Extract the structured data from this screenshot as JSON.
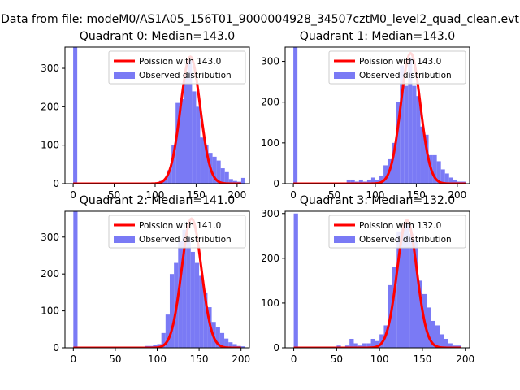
{
  "suptitle": "Data from file: modeM0/AS1A05_156T01_9000004928_34507cztM0_level2_quad_clean.evt",
  "colors": {
    "observed": "#7a7af5",
    "poisson": "#ff0000",
    "axis": "#000000"
  },
  "chart_data": [
    {
      "type": "bar",
      "title": "Quadrant 0: Median=143.0",
      "xlim": [
        -10,
        215
      ],
      "ylim": [
        0,
        355
      ],
      "xticks": [
        0,
        50,
        100,
        150,
        200
      ],
      "yticks": [
        0,
        100,
        200,
        300
      ],
      "legend_position": "upper right",
      "poisson": {
        "label": "Poission with 143.0",
        "lambda": 143.0,
        "peak": 330,
        "x_range": [
          0,
          205
        ]
      },
      "observed": {
        "label": "Observed distribution",
        "bin_width": 5,
        "bins": [
          [
            0,
            360
          ],
          [
            5,
            0
          ],
          [
            10,
            0
          ],
          [
            15,
            0
          ],
          [
            20,
            0
          ],
          [
            25,
            0
          ],
          [
            30,
            0
          ],
          [
            35,
            0
          ],
          [
            40,
            0
          ],
          [
            45,
            0
          ],
          [
            50,
            0
          ],
          [
            55,
            0
          ],
          [
            60,
            0
          ],
          [
            65,
            0
          ],
          [
            70,
            0
          ],
          [
            75,
            0
          ],
          [
            80,
            0
          ],
          [
            85,
            0
          ],
          [
            90,
            0
          ],
          [
            95,
            1
          ],
          [
            100,
            3
          ],
          [
            105,
            7
          ],
          [
            110,
            10
          ],
          [
            115,
            35
          ],
          [
            120,
            100
          ],
          [
            125,
            210
          ],
          [
            130,
            220
          ],
          [
            135,
            285
          ],
          [
            140,
            320
          ],
          [
            145,
            240
          ],
          [
            150,
            200
          ],
          [
            155,
            120
          ],
          [
            160,
            100
          ],
          [
            165,
            80
          ],
          [
            170,
            70
          ],
          [
            175,
            60
          ],
          [
            180,
            40
          ],
          [
            185,
            30
          ],
          [
            190,
            12
          ],
          [
            195,
            7
          ],
          [
            200,
            5
          ],
          [
            205,
            15
          ]
        ]
      }
    },
    {
      "type": "bar",
      "title": "Quadrant 1: Median=143.0",
      "xlim": [
        -10,
        215
      ],
      "ylim": [
        0,
        335
      ],
      "xticks": [
        0,
        50,
        100,
        150,
        200
      ],
      "yticks": [
        0,
        100,
        200,
        300
      ],
      "legend_position": "upper right",
      "poisson": {
        "label": "Poission with 143.0",
        "lambda": 143.0,
        "peak": 320,
        "x_range": [
          0,
          210
        ]
      },
      "observed": {
        "label": "Observed distribution",
        "bin_width": 5,
        "bins": [
          [
            0,
            340
          ],
          [
            5,
            0
          ],
          [
            10,
            0
          ],
          [
            15,
            0
          ],
          [
            20,
            0
          ],
          [
            25,
            0
          ],
          [
            30,
            0
          ],
          [
            35,
            0
          ],
          [
            40,
            0
          ],
          [
            45,
            0
          ],
          [
            50,
            0
          ],
          [
            55,
            0
          ],
          [
            60,
            0
          ],
          [
            65,
            10
          ],
          [
            70,
            10
          ],
          [
            75,
            5
          ],
          [
            80,
            10
          ],
          [
            85,
            5
          ],
          [
            90,
            10
          ],
          [
            95,
            15
          ],
          [
            100,
            10
          ],
          [
            105,
            20
          ],
          [
            110,
            45
          ],
          [
            115,
            60
          ],
          [
            120,
            100
          ],
          [
            125,
            200
          ],
          [
            130,
            290
          ],
          [
            135,
            240
          ],
          [
            140,
            310
          ],
          [
            145,
            240
          ],
          [
            150,
            215
          ],
          [
            155,
            140
          ],
          [
            160,
            120
          ],
          [
            165,
            70
          ],
          [
            170,
            70
          ],
          [
            175,
            55
          ],
          [
            180,
            35
          ],
          [
            185,
            25
          ],
          [
            190,
            15
          ],
          [
            195,
            10
          ],
          [
            200,
            5
          ],
          [
            205,
            5
          ]
        ]
      }
    },
    {
      "type": "bar",
      "title": "Quadrant 2: Median=141.0",
      "xlim": [
        -10,
        210
      ],
      "ylim": [
        0,
        370
      ],
      "xticks": [
        0,
        50,
        100,
        150,
        200
      ],
      "yticks": [
        0,
        100,
        200,
        300
      ],
      "legend_position": "upper right",
      "poisson": {
        "label": "Poission with 141.0",
        "lambda": 141.0,
        "peak": 350,
        "x_range": [
          0,
          200
        ]
      },
      "observed": {
        "label": "Observed distribution",
        "bin_width": 5,
        "bins": [
          [
            0,
            370
          ],
          [
            5,
            0
          ],
          [
            10,
            0
          ],
          [
            15,
            0
          ],
          [
            20,
            0
          ],
          [
            25,
            0
          ],
          [
            30,
            0
          ],
          [
            35,
            0
          ],
          [
            40,
            0
          ],
          [
            45,
            0
          ],
          [
            50,
            0
          ],
          [
            55,
            0
          ],
          [
            60,
            0
          ],
          [
            65,
            0
          ],
          [
            70,
            0
          ],
          [
            75,
            0
          ],
          [
            80,
            3
          ],
          [
            85,
            5
          ],
          [
            90,
            5
          ],
          [
            95,
            8
          ],
          [
            100,
            10
          ],
          [
            105,
            40
          ],
          [
            110,
            90
          ],
          [
            115,
            200
          ],
          [
            120,
            230
          ],
          [
            125,
            290
          ],
          [
            130,
            320
          ],
          [
            135,
            300
          ],
          [
            140,
            260
          ],
          [
            145,
            230
          ],
          [
            150,
            195
          ],
          [
            155,
            150
          ],
          [
            160,
            110
          ],
          [
            165,
            70
          ],
          [
            170,
            55
          ],
          [
            175,
            40
          ],
          [
            180,
            25
          ],
          [
            185,
            15
          ],
          [
            190,
            10
          ],
          [
            195,
            5
          ],
          [
            200,
            4
          ]
        ]
      }
    },
    {
      "type": "bar",
      "title": "Quadrant 3: Median=132.0",
      "xlim": [
        -10,
        205
      ],
      "ylim": [
        0,
        305
      ],
      "xticks": [
        0,
        50,
        100,
        150,
        200
      ],
      "yticks": [
        0,
        100,
        200,
        300
      ],
      "legend_position": "upper right",
      "poisson": {
        "label": "Poission with 132.0",
        "lambda": 132.0,
        "peak": 285,
        "x_range": [
          0,
          195
        ]
      },
      "observed": {
        "label": "Observed distribution",
        "bin_width": 5,
        "bins": [
          [
            0,
            300
          ],
          [
            5,
            0
          ],
          [
            10,
            0
          ],
          [
            15,
            0
          ],
          [
            20,
            0
          ],
          [
            25,
            0
          ],
          [
            30,
            0
          ],
          [
            35,
            0
          ],
          [
            40,
            0
          ],
          [
            45,
            0
          ],
          [
            50,
            5
          ],
          [
            55,
            0
          ],
          [
            60,
            5
          ],
          [
            65,
            20
          ],
          [
            70,
            10
          ],
          [
            75,
            5
          ],
          [
            80,
            10
          ],
          [
            85,
            10
          ],
          [
            90,
            20
          ],
          [
            95,
            15
          ],
          [
            100,
            30
          ],
          [
            105,
            50
          ],
          [
            110,
            140
          ],
          [
            115,
            180
          ],
          [
            120,
            260
          ],
          [
            125,
            270
          ],
          [
            130,
            280
          ],
          [
            135,
            255
          ],
          [
            140,
            240
          ],
          [
            145,
            150
          ],
          [
            150,
            120
          ],
          [
            155,
            90
          ],
          [
            160,
            60
          ],
          [
            165,
            50
          ],
          [
            170,
            30
          ],
          [
            175,
            20
          ],
          [
            180,
            10
          ],
          [
            185,
            5
          ],
          [
            190,
            5
          ]
        ]
      }
    }
  ]
}
